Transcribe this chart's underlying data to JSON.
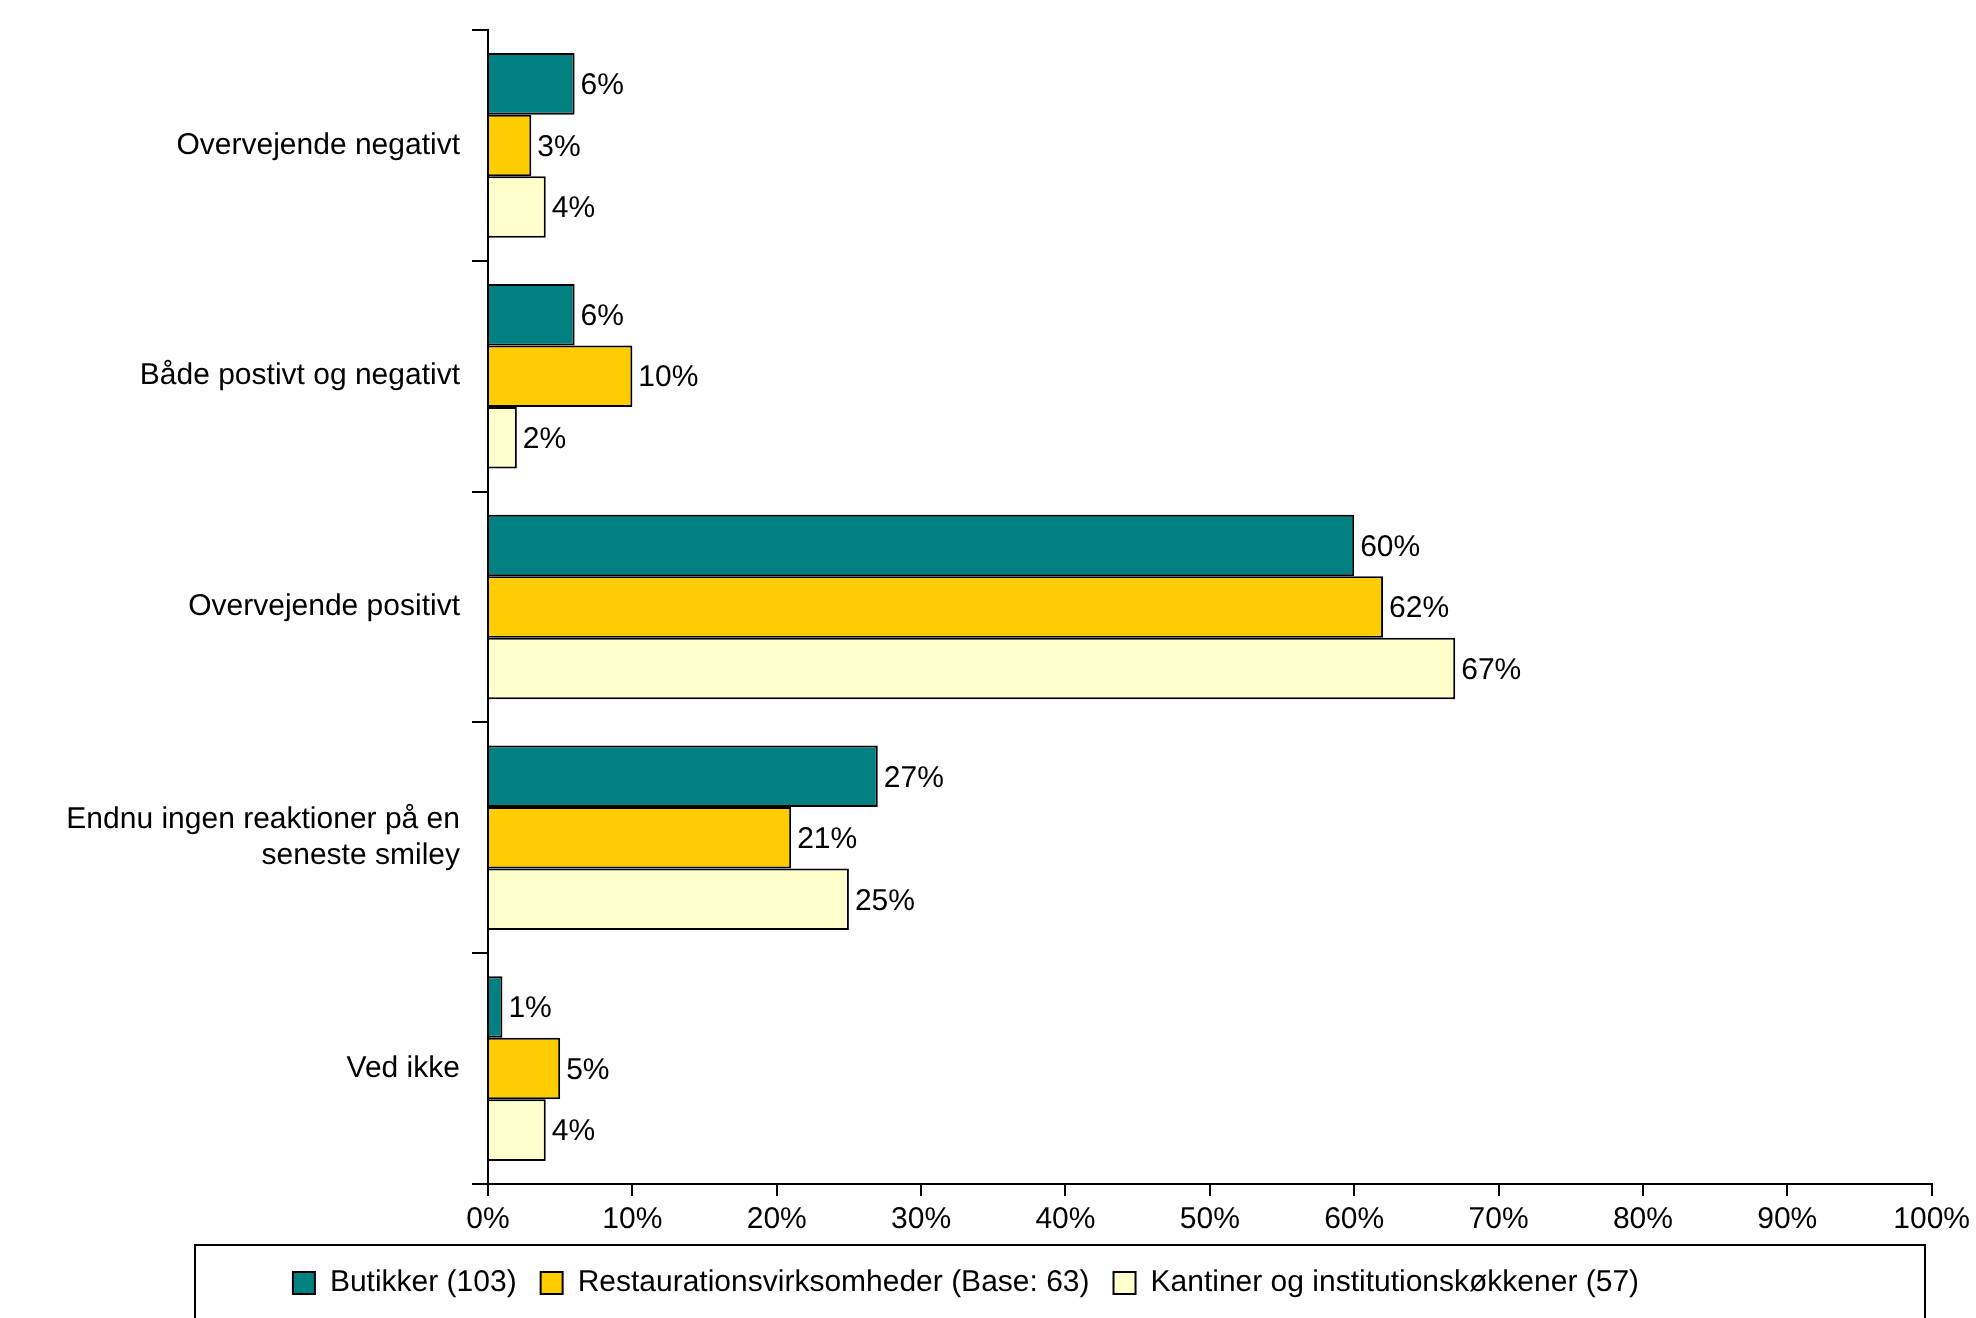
{
  "chart_data": {
    "type": "bar",
    "orientation": "horizontal",
    "categories": [
      "Overvejende negativt",
      "Både postivt og negativt",
      "Overvejende positivt",
      "Endnu ingen reaktioner på en seneste smiley",
      "Ved ikke"
    ],
    "series": [
      {
        "name": "Butikker (103)",
        "color": "#008080",
        "values": [
          6,
          6,
          60,
          27,
          1
        ],
        "value_labels": [
          "6%",
          "6%",
          "60%",
          "27%",
          "1%"
        ]
      },
      {
        "name": "Restaurationsvirksomheder (Base: 63)",
        "color": "#ffcc00",
        "values": [
          3,
          10,
          62,
          21,
          5
        ],
        "value_labels": [
          "3%",
          "10%",
          "62%",
          "21%",
          "5%"
        ]
      },
      {
        "name": "Kantiner og institutionskøkkener (57)",
        "color": "#ffffcc",
        "values": [
          4,
          2,
          67,
          25,
          4
        ],
        "value_labels": [
          "4%",
          "2%",
          "67%",
          "25%",
          "4%"
        ]
      }
    ],
    "xlim": [
      0,
      100
    ],
    "xticks": [
      {
        "value": 0,
        "label": "0%"
      },
      {
        "value": 10,
        "label": "10%"
      },
      {
        "value": 20,
        "label": "20%"
      },
      {
        "value": 30,
        "label": "30%"
      },
      {
        "value": 40,
        "label": "40%"
      },
      {
        "value": 50,
        "label": "50%"
      },
      {
        "value": 60,
        "label": "60%"
      },
      {
        "value": 70,
        "label": "70%"
      },
      {
        "value": 80,
        "label": "80%"
      },
      {
        "value": 90,
        "label": "90%"
      },
      {
        "value": 100,
        "label": "100%"
      }
    ],
    "grid": false,
    "legend": "bottom"
  }
}
